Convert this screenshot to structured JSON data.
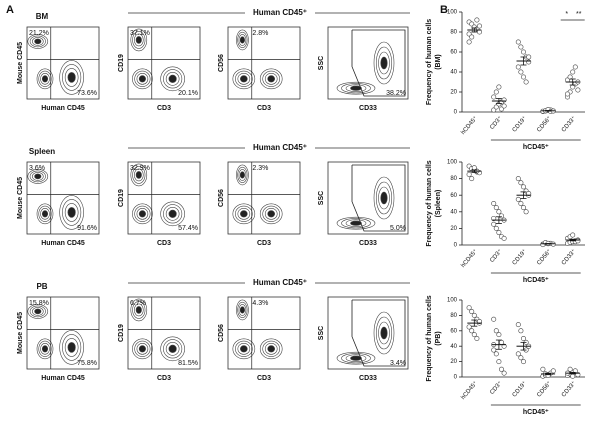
{
  "panel_a": {
    "label": "A",
    "rows": [
      {
        "tissue": "BM",
        "header": "Human CD45⁺",
        "plots": [
          {
            "y_label": "Mouse CD45",
            "x_label": "Human CD45",
            "gates": [
              "21.2%",
              "73.6%"
            ]
          },
          {
            "y_label": "CD19",
            "x_label": "CD3",
            "gates": [
              "37.1%",
              "20.1%"
            ]
          },
          {
            "y_label": "CD56",
            "x_label": "CD3",
            "gates": [
              "2.8%"
            ]
          },
          {
            "y_label": "SSC",
            "x_label": "CD33",
            "gates": [
              "38.2%"
            ]
          }
        ]
      },
      {
        "tissue": "Spleen",
        "header": "Human CD45⁺",
        "plots": [
          {
            "y_label": "Mouse CD45",
            "x_label": "Human CD45",
            "gates": [
              "3.6%",
              "91.6%"
            ]
          },
          {
            "y_label": "CD19",
            "x_label": "CD3",
            "gates": [
              "32.9%",
              "57.4%"
            ]
          },
          {
            "y_label": "CD56",
            "x_label": "CD3",
            "gates": [
              "2.3%"
            ]
          },
          {
            "y_label": "SSC",
            "x_label": "CD33",
            "gates": [
              "5.0%"
            ]
          }
        ]
      },
      {
        "tissue": "PB",
        "header": "Human CD45⁺",
        "plots": [
          {
            "y_label": "Mouse CD45",
            "x_label": "Human CD45",
            "gates": [
              "15.8%",
              "75.8%"
            ]
          },
          {
            "y_label": "CD19",
            "x_label": "CD3",
            "gates": [
              "6.7%",
              "81.5%"
            ]
          },
          {
            "y_label": "CD56",
            "x_label": "CD3",
            "gates": [
              "4.3%"
            ]
          },
          {
            "y_label": "SSC",
            "x_label": "CD33",
            "gates": [
              "3.4%"
            ]
          }
        ]
      }
    ]
  },
  "panel_b": {
    "label": "B"
  },
  "chart_data": [
    {
      "type": "strip",
      "ylabel": "Frequency of human cells",
      "ylabel_sub": "(BM)",
      "categories": [
        "hCD45⁺",
        "CD3⁺",
        "CD19⁺",
        "CD56⁺",
        "CD33⁺"
      ],
      "group_label": "hCD45⁺",
      "points": [
        [
          90,
          88,
          85,
          83,
          80,
          78,
          75,
          82,
          92,
          86,
          70
        ],
        [
          2,
          5,
          8,
          10,
          12,
          15,
          20,
          25,
          3,
          6
        ],
        [
          70,
          65,
          60,
          55,
          50,
          45,
          40,
          35,
          30,
          55
        ],
        [
          0.5,
          1,
          1.5,
          2,
          1,
          0.8,
          1.2,
          2.5,
          0.5,
          1
        ],
        [
          15,
          20,
          25,
          28,
          30,
          32,
          35,
          40,
          45,
          22,
          18
        ]
      ],
      "means": [
        82,
        11,
        51,
        1.2,
        30
      ],
      "sems": [
        2,
        2.5,
        4,
        0.3,
        3
      ],
      "annotations": [
        "*",
        "**"
      ],
      "ylim": [
        0,
        100
      ],
      "yticks": [
        0,
        20,
        40,
        60,
        80,
        100
      ]
    },
    {
      "type": "strip",
      "ylabel": "Frequency of human cells",
      "ylabel_sub": "(Spleen)",
      "categories": [
        "hCD45⁺",
        "CD3⁺",
        "CD19⁺",
        "CD56⁺",
        "CD33⁺"
      ],
      "group_label": "hCD45⁺",
      "points": [
        [
          95,
          92,
          90,
          88,
          87,
          85,
          80,
          93,
          89
        ],
        [
          50,
          45,
          40,
          35,
          30,
          25,
          20,
          15,
          10,
          8,
          32
        ],
        [
          80,
          75,
          70,
          65,
          60,
          55,
          50,
          45,
          40,
          62
        ],
        [
          1,
          2,
          1.5,
          2,
          1,
          0.5,
          3,
          2
        ],
        [
          2,
          3,
          4,
          5,
          6,
          8,
          10,
          12,
          4,
          5
        ]
      ],
      "means": [
        89,
        30,
        60,
        1.5,
        6
      ],
      "sems": [
        1.5,
        4,
        4,
        0.3,
        1
      ],
      "ylim": [
        0,
        100
      ],
      "yticks": [
        0,
        20,
        40,
        60,
        80,
        100
      ]
    },
    {
      "type": "strip",
      "ylabel": "Frequency of human cells",
      "ylabel_sub": "(PB)",
      "categories": [
        "hCD45⁺",
        "CD3⁺",
        "CD19⁺",
        "CD56⁺",
        "CD33⁺"
      ],
      "group_label": "hCD45⁺",
      "points": [
        [
          90,
          85,
          80,
          75,
          70,
          65,
          60,
          55,
          50,
          72
        ],
        [
          75,
          60,
          55,
          45,
          40,
          35,
          30,
          20,
          10,
          5,
          42
        ],
        [
          68,
          60,
          50,
          45,
          40,
          30,
          25,
          20,
          35
        ],
        [
          1,
          2,
          3,
          5,
          8,
          10,
          4,
          2
        ],
        [
          2,
          4,
          6,
          8,
          3,
          5,
          10,
          1
        ]
      ],
      "means": [
        70,
        42,
        40,
        4,
        5
      ],
      "sems": [
        4,
        6,
        5,
        1,
        1
      ],
      "ylim": [
        0,
        100
      ],
      "yticks": [
        0,
        20,
        40,
        60,
        80,
        100
      ]
    }
  ]
}
